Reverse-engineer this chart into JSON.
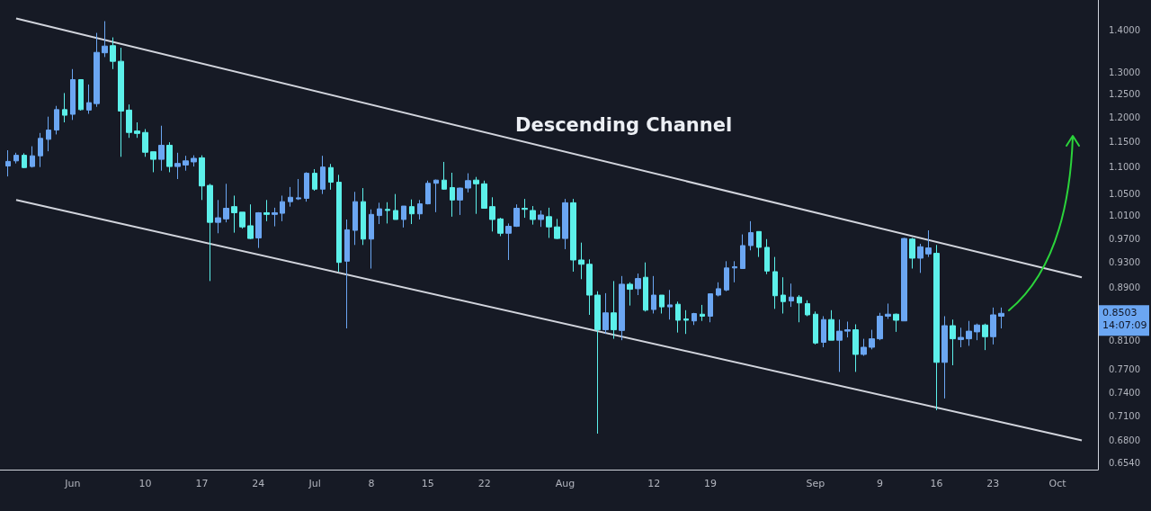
{
  "chart_data": {
    "type": "candlestick",
    "title": "Descending Channel",
    "x": [
      "--05-24",
      "--05-25",
      "--05-26",
      "--05-27",
      "--05-28",
      "--05-29",
      "--05-30",
      "--05-31",
      "--06-01",
      "--06-02",
      "--06-03",
      "--06-04",
      "--06-05",
      "--06-06",
      "--06-07",
      "--06-08",
      "--06-09",
      "--06-10",
      "--06-11",
      "--06-12",
      "--06-13",
      "--06-14",
      "--06-15",
      "--06-16",
      "--06-17",
      "--06-18",
      "--06-19",
      "--06-20",
      "--06-21",
      "--06-22",
      "--06-23",
      "--06-24",
      "--06-25",
      "--06-26",
      "--06-27",
      "--06-28",
      "--06-29",
      "--06-30",
      "--07-01",
      "--07-02",
      "--07-03",
      "--07-04",
      "--07-05",
      "--07-06",
      "--07-07",
      "--07-08",
      "--07-09",
      "--07-10",
      "--07-11",
      "--07-12",
      "--07-13",
      "--07-14",
      "--07-15",
      "--07-16",
      "--07-17",
      "--07-18",
      "--07-19",
      "--07-20",
      "--07-21",
      "--07-22",
      "--07-23",
      "--07-24",
      "--07-25",
      "--07-26",
      "--07-27",
      "--07-28",
      "--07-29",
      "--07-30",
      "--07-31",
      "--08-01",
      "--08-02",
      "--08-03",
      "--08-04",
      "--08-05",
      "--08-06",
      "--08-07",
      "--08-08",
      "--08-09",
      "--08-10",
      "--08-11",
      "--08-12",
      "--08-13",
      "--08-14",
      "--08-15",
      "--08-16",
      "--08-17",
      "--08-18",
      "--08-19",
      "--08-20",
      "--08-21",
      "--08-22",
      "--08-23",
      "--08-24",
      "--08-25",
      "--08-26",
      "--08-27",
      "--08-28",
      "--08-29",
      "--08-30",
      "--08-31",
      "--09-01",
      "--09-02",
      "--09-03",
      "--09-04",
      "--09-05",
      "--09-06",
      "--09-07",
      "--09-08",
      "--09-09",
      "--09-10",
      "--09-11",
      "--09-12",
      "--09-13",
      "--09-14",
      "--09-15",
      "--09-16",
      "--09-17",
      "--09-18",
      "--09-19",
      "--09-20",
      "--09-21",
      "--09-22",
      "--09-23",
      "--09-24"
    ],
    "ohlc": [
      [
        1.102,
        1.133,
        1.082,
        1.111
      ],
      [
        1.112,
        1.128,
        1.107,
        1.123
      ],
      [
        1.123,
        1.127,
        1.098,
        1.099
      ],
      [
        1.101,
        1.141,
        1.099,
        1.122
      ],
      [
        1.122,
        1.168,
        1.1,
        1.157
      ],
      [
        1.155,
        1.202,
        1.131,
        1.174
      ],
      [
        1.174,
        1.225,
        1.165,
        1.217
      ],
      [
        1.217,
        1.253,
        1.19,
        1.205
      ],
      [
        1.207,
        1.307,
        1.195,
        1.283
      ],
      [
        1.283,
        1.283,
        1.215,
        1.217
      ],
      [
        1.216,
        1.272,
        1.208,
        1.232
      ],
      [
        1.23,
        1.393,
        1.223,
        1.346
      ],
      [
        1.345,
        1.422,
        1.335,
        1.361
      ],
      [
        1.362,
        1.382,
        1.307,
        1.325
      ],
      [
        1.325,
        1.357,
        1.12,
        1.214
      ],
      [
        1.216,
        1.228,
        1.158,
        1.169
      ],
      [
        1.172,
        1.19,
        1.158,
        1.167
      ],
      [
        1.169,
        1.176,
        1.12,
        1.129
      ],
      [
        1.13,
        1.13,
        1.09,
        1.115
      ],
      [
        1.115,
        1.183,
        1.093,
        1.143
      ],
      [
        1.143,
        1.149,
        1.09,
        1.101
      ],
      [
        1.101,
        1.128,
        1.077,
        1.107
      ],
      [
        1.104,
        1.122,
        1.093,
        1.112
      ],
      [
        1.11,
        1.123,
        1.101,
        1.117
      ],
      [
        1.118,
        1.123,
        1.038,
        1.064
      ],
      [
        1.065,
        1.068,
        0.9,
        0.998
      ],
      [
        0.998,
        1.038,
        0.979,
        1.006
      ],
      [
        1.004,
        1.068,
        0.998,
        1.023
      ],
      [
        1.026,
        1.046,
        0.98,
        1.015
      ],
      [
        1.016,
        1.016,
        0.987,
        0.99
      ],
      [
        0.992,
        1.03,
        0.969,
        0.97
      ],
      [
        0.971,
        1.016,
        0.954,
        1.015
      ],
      [
        1.015,
        1.038,
        1.0,
        1.012
      ],
      [
        1.012,
        1.024,
        0.991,
        1.015
      ],
      [
        1.014,
        1.046,
        1.0,
        1.035
      ],
      [
        1.035,
        1.062,
        1.026,
        1.043
      ],
      [
        1.04,
        1.077,
        1.038,
        1.042
      ],
      [
        1.041,
        1.09,
        1.035,
        1.088
      ],
      [
        1.088,
        1.096,
        1.055,
        1.058
      ],
      [
        1.058,
        1.122,
        1.049,
        1.1
      ],
      [
        1.099,
        1.106,
        1.057,
        1.071
      ],
      [
        1.071,
        1.085,
        0.915,
        0.93
      ],
      [
        0.932,
        1.003,
        0.828,
        0.985
      ],
      [
        0.984,
        1.053,
        0.959,
        1.035
      ],
      [
        1.035,
        1.06,
        0.959,
        0.969
      ],
      [
        0.969,
        1.021,
        0.92,
        1.012
      ],
      [
        1.01,
        1.033,
        0.995,
        1.022
      ],
      [
        1.021,
        1.034,
        0.996,
        1.019
      ],
      [
        1.019,
        1.049,
        1.003,
        1.003
      ],
      [
        1.003,
        1.027,
        0.989,
        1.027
      ],
      [
        1.026,
        1.039,
        0.995,
        1.013
      ],
      [
        1.013,
        1.038,
        1.003,
        1.031
      ],
      [
        1.031,
        1.074,
        1.03,
        1.069
      ],
      [
        1.069,
        1.076,
        1.016,
        1.075
      ],
      [
        1.075,
        1.11,
        1.057,
        1.058
      ],
      [
        1.061,
        1.089,
        1.008,
        1.038
      ],
      [
        1.038,
        1.061,
        1.011,
        1.06
      ],
      [
        1.06,
        1.088,
        1.052,
        1.074
      ],
      [
        1.075,
        1.081,
        1.013,
        1.068
      ],
      [
        1.068,
        1.074,
        1.023,
        1.023
      ],
      [
        1.026,
        1.043,
        0.982,
        1.003
      ],
      [
        1.004,
        1.006,
        0.974,
        0.979
      ],
      [
        0.979,
        0.996,
        0.934,
        0.991
      ],
      [
        0.991,
        1.03,
        0.99,
        1.023
      ],
      [
        1.023,
        1.04,
        1.006,
        1.021
      ],
      [
        1.019,
        1.027,
        0.994,
        1.003
      ],
      [
        1.003,
        1.019,
        0.99,
        1.011
      ],
      [
        1.008,
        1.024,
        0.971,
        0.99
      ],
      [
        0.99,
        1.004,
        0.969,
        0.97
      ],
      [
        0.97,
        1.04,
        0.952,
        1.033
      ],
      [
        1.033,
        1.04,
        0.915,
        0.934
      ],
      [
        0.934,
        0.963,
        0.903,
        0.927
      ],
      [
        0.927,
        0.935,
        0.848,
        0.878
      ],
      [
        0.878,
        0.884,
        0.688,
        0.826
      ],
      [
        0.826,
        0.881,
        0.82,
        0.851
      ],
      [
        0.851,
        0.9,
        0.813,
        0.826
      ],
      [
        0.825,
        0.908,
        0.811,
        0.895
      ],
      [
        0.895,
        0.898,
        0.862,
        0.887
      ],
      [
        0.888,
        0.912,
        0.878,
        0.904
      ],
      [
        0.906,
        0.93,
        0.853,
        0.855
      ],
      [
        0.856,
        0.908,
        0.85,
        0.878
      ],
      [
        0.878,
        0.878,
        0.85,
        0.86
      ],
      [
        0.86,
        0.886,
        0.841,
        0.863
      ],
      [
        0.864,
        0.868,
        0.822,
        0.84
      ],
      [
        0.842,
        0.855,
        0.82,
        0.84
      ],
      [
        0.839,
        0.851,
        0.833,
        0.85
      ],
      [
        0.849,
        0.863,
        0.839,
        0.846
      ],
      [
        0.846,
        0.88,
        0.837,
        0.88
      ],
      [
        0.878,
        0.898,
        0.876,
        0.888
      ],
      [
        0.886,
        0.932,
        0.884,
        0.921
      ],
      [
        0.921,
        0.932,
        0.898,
        0.923
      ],
      [
        0.92,
        0.977,
        0.92,
        0.958
      ],
      [
        0.958,
        1.0,
        0.95,
        0.98
      ],
      [
        0.982,
        0.982,
        0.939,
        0.955
      ],
      [
        0.955,
        0.969,
        0.911,
        0.916
      ],
      [
        0.915,
        0.939,
        0.857,
        0.877
      ],
      [
        0.878,
        0.906,
        0.85,
        0.868
      ],
      [
        0.869,
        0.896,
        0.86,
        0.875
      ],
      [
        0.875,
        0.878,
        0.837,
        0.866
      ],
      [
        0.865,
        0.87,
        0.846,
        0.848
      ],
      [
        0.849,
        0.853,
        0.805,
        0.807
      ],
      [
        0.808,
        0.846,
        0.801,
        0.841
      ],
      [
        0.841,
        0.855,
        0.811,
        0.811
      ],
      [
        0.811,
        0.841,
        0.767,
        0.824
      ],
      [
        0.824,
        0.838,
        0.815,
        0.826
      ],
      [
        0.826,
        0.834,
        0.767,
        0.791
      ],
      [
        0.791,
        0.813,
        0.789,
        0.801
      ],
      [
        0.801,
        0.826,
        0.798,
        0.813
      ],
      [
        0.813,
        0.851,
        0.811,
        0.846
      ],
      [
        0.846,
        0.865,
        0.842,
        0.849
      ],
      [
        0.849,
        0.85,
        0.823,
        0.84
      ],
      [
        0.839,
        0.971,
        0.839,
        0.97
      ],
      [
        0.969,
        0.971,
        0.92,
        0.937
      ],
      [
        0.937,
        0.961,
        0.913,
        0.956
      ],
      [
        0.944,
        0.984,
        0.939,
        0.954
      ],
      [
        0.945,
        0.959,
        0.717,
        0.78
      ],
      [
        0.78,
        0.846,
        0.732,
        0.832
      ],
      [
        0.832,
        0.841,
        0.776,
        0.813
      ],
      [
        0.812,
        0.829,
        0.801,
        0.815
      ],
      [
        0.813,
        0.839,
        0.803,
        0.824
      ],
      [
        0.823,
        0.835,
        0.811,
        0.833
      ],
      [
        0.833,
        0.835,
        0.797,
        0.816
      ],
      [
        0.816,
        0.859,
        0.805,
        0.848
      ],
      [
        0.846,
        0.859,
        0.828,
        0.8503
      ]
    ],
    "colors": [
      "#6ba6f2",
      "#6ba6f2",
      "#5cf0ea",
      "#6ba6f2",
      "#6ba6f2",
      "#6ba6f2",
      "#6ba6f2",
      "#5cf0ea",
      "#6ba6f2",
      "#5cf0ea",
      "#6ba6f2",
      "#6ba6f2",
      "#6ba6f2",
      "#5cf0ea",
      "#5cf0ea",
      "#5cf0ea",
      "#5cf0ea",
      "#5cf0ea",
      "#5cf0ea",
      "#6ba6f2",
      "#5cf0ea",
      "#6ba6f2",
      "#6ba6f2",
      "#6ba6f2",
      "#5cf0ea",
      "#5cf0ea",
      "#6ba6f2",
      "#6ba6f2",
      "#5cf0ea",
      "#5cf0ea",
      "#5cf0ea",
      "#6ba6f2",
      "#5cf0ea",
      "#6ba6f2",
      "#6ba6f2",
      "#6ba6f2",
      "#6ba6f2",
      "#6ba6f2",
      "#5cf0ea",
      "#6ba6f2",
      "#5cf0ea",
      "#5cf0ea",
      "#6ba6f2",
      "#6ba6f2",
      "#5cf0ea",
      "#6ba6f2",
      "#6ba6f2",
      "#5cf0ea",
      "#5cf0ea",
      "#6ba6f2",
      "#5cf0ea",
      "#6ba6f2",
      "#6ba6f2",
      "#6ba6f2",
      "#5cf0ea",
      "#5cf0ea",
      "#6ba6f2",
      "#6ba6f2",
      "#5cf0ea",
      "#5cf0ea",
      "#5cf0ea",
      "#5cf0ea",
      "#6ba6f2",
      "#6ba6f2",
      "#5cf0ea",
      "#5cf0ea",
      "#6ba6f2",
      "#5cf0ea",
      "#5cf0ea",
      "#6ba6f2",
      "#5cf0ea",
      "#5cf0ea",
      "#5cf0ea",
      "#5cf0ea",
      "#6ba6f2",
      "#5cf0ea",
      "#6ba6f2",
      "#5cf0ea",
      "#6ba6f2",
      "#5cf0ea",
      "#6ba6f2",
      "#5cf0ea",
      "#6ba6f2",
      "#5cf0ea",
      "#5cf0ea",
      "#6ba6f2",
      "#5cf0ea",
      "#6ba6f2",
      "#6ba6f2",
      "#6ba6f2",
      "#6ba6f2",
      "#6ba6f2",
      "#6ba6f2",
      "#5cf0ea",
      "#5cf0ea",
      "#5cf0ea",
      "#5cf0ea",
      "#6ba6f2",
      "#5cf0ea",
      "#5cf0ea",
      "#5cf0ea",
      "#6ba6f2",
      "#5cf0ea",
      "#6ba6f2",
      "#6ba6f2",
      "#5cf0ea",
      "#6ba6f2",
      "#6ba6f2",
      "#6ba6f2",
      "#6ba6f2",
      "#5cf0ea",
      "#6ba6f2",
      "#5cf0ea",
      "#6ba6f2",
      "#6ba6f2",
      "#5cf0ea",
      "#6ba6f2",
      "#5cf0ea",
      "#6ba6f2",
      "#6ba6f2",
      "#6ba6f2",
      "#5cf0ea",
      "#6ba6f2",
      "#6ba6f2"
    ],
    "series": [
      {
        "type": "line",
        "x": [
          "--05-25",
          "--10-04"
        ],
        "values": [
          1.429,
          0.906
        ],
        "color": "#d1d4dc"
      },
      {
        "type": "line",
        "x": [
          "--05-25",
          "--10-04"
        ],
        "values": [
          1.038,
          0.68
        ],
        "color": "#d1d4dc"
      }
    ],
    "log": true,
    "xlim": [
      "--05-23",
      "--10-06"
    ],
    "xticks": [
      {
        "value": "--06-01",
        "label": "Jun"
      },
      {
        "value": "--06-10",
        "label": "10"
      },
      {
        "value": "--06-17",
        "label": "17"
      },
      {
        "value": "--06-24",
        "label": "24"
      },
      {
        "value": "--07-01",
        "label": "Jul"
      },
      {
        "value": "--07-08",
        "label": "8"
      },
      {
        "value": "--07-15",
        "label": "15"
      },
      {
        "value": "--07-22",
        "label": "22"
      },
      {
        "value": "--08-01",
        "label": "Aug"
      },
      {
        "value": "--08-12",
        "label": "12"
      },
      {
        "value": "--08-19",
        "label": "19"
      },
      {
        "value": "--09-01",
        "label": "Sep"
      },
      {
        "value": "--09-09",
        "label": "9"
      },
      {
        "value": "--09-16",
        "label": "16"
      },
      {
        "value": "--09-23",
        "label": "23"
      },
      {
        "value": "--10-01",
        "label": "Oct"
      }
    ],
    "ylim": [
      0.6458,
      1.476
    ],
    "yticks": [
      {
        "value": 1.4,
        "label": "1.4000"
      },
      {
        "value": 1.3,
        "label": "1.3000"
      },
      {
        "value": 1.25,
        "label": "1.2500"
      },
      {
        "value": 1.2,
        "label": "1.2000"
      },
      {
        "value": 1.15,
        "label": "1.1500"
      },
      {
        "value": 1.1,
        "label": "1.1000"
      },
      {
        "value": 1.05,
        "label": "1.0500"
      },
      {
        "value": 1.01,
        "label": "1.0100"
      },
      {
        "value": 0.97,
        "label": "0.9700"
      },
      {
        "value": 0.93,
        "label": "0.9300"
      },
      {
        "value": 0.89,
        "label": "0.8900"
      },
      {
        "value": 0.81,
        "label": "0.8100"
      },
      {
        "value": 0.77,
        "label": "0.7700"
      },
      {
        "value": 0.74,
        "label": "0.7400"
      },
      {
        "value": 0.71,
        "label": "0.7100"
      },
      {
        "value": 0.68,
        "label": "0.6800"
      },
      {
        "value": 0.654,
        "label": "0.6540"
      }
    ],
    "annotations": [
      "0.8503",
      "14:07:09"
    ]
  }
}
